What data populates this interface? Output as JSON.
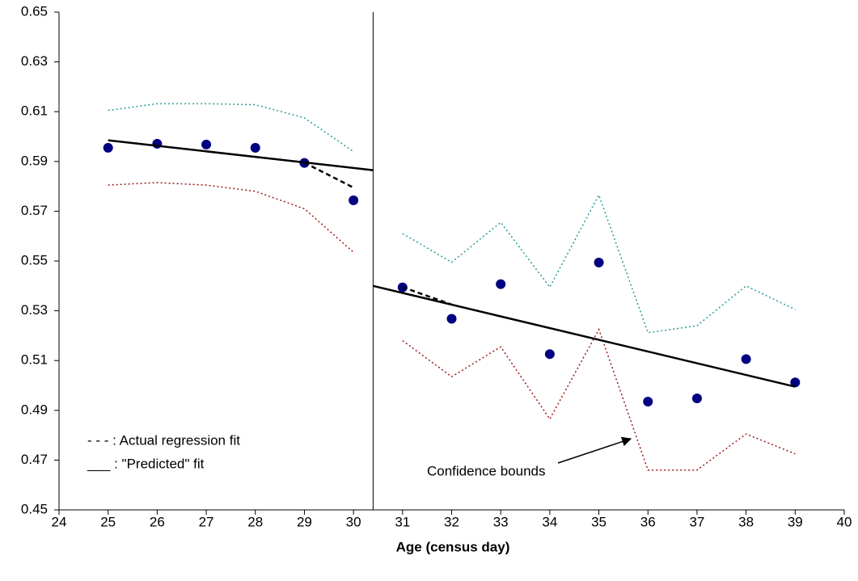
{
  "chart_data": {
    "type": "line",
    "x_label": "Age (census day)",
    "xlim": [
      24,
      40
    ],
    "xticks": [
      24,
      25,
      26,
      27,
      28,
      29,
      30,
      31,
      32,
      33,
      34,
      35,
      36,
      37,
      38,
      39,
      40
    ],
    "ylim": [
      0.45,
      0.65
    ],
    "yticks": [
      0.45,
      0.47,
      0.49,
      0.51,
      0.53,
      0.55,
      0.57,
      0.59,
      0.61,
      0.63,
      0.65
    ],
    "vline": 30.4,
    "series": [
      {
        "style": "dots",
        "color": "#000080",
        "x": [
          25,
          26,
          27,
          28,
          29,
          30,
          31,
          32,
          33,
          34,
          35,
          36,
          37,
          38,
          39
        ],
        "values": [
          0.5955,
          0.5971,
          0.5968,
          0.5955,
          0.5894,
          0.5744,
          0.5394,
          0.5268,
          0.5407,
          0.5126,
          0.5494,
          0.4935,
          0.4948,
          0.5106,
          0.5012
        ]
      },
      {
        "style": "dotted",
        "color": "#2a9a9a",
        "x": [
          25,
          26,
          27,
          28,
          29,
          30
        ],
        "values": [
          0.6105,
          0.6132,
          0.6132,
          0.6128,
          0.6075,
          0.594
        ]
      },
      {
        "style": "dotted",
        "color": "#2a9a9a",
        "x": [
          31,
          32,
          33,
          34,
          35,
          36,
          37,
          38,
          39
        ],
        "values": [
          0.561,
          0.5495,
          0.5655,
          0.5395,
          0.5765,
          0.5212,
          0.524,
          0.54,
          0.5305
        ]
      },
      {
        "style": "dotted",
        "color": "#a01818",
        "x": [
          25,
          26,
          27,
          28,
          29,
          30
        ],
        "values": [
          0.5805,
          0.5815,
          0.5805,
          0.578,
          0.571,
          0.5535
        ]
      },
      {
        "style": "dotted",
        "color": "#a01818",
        "x": [
          31,
          32,
          33,
          34,
          35,
          36,
          37,
          38,
          39
        ],
        "values": [
          0.518,
          0.5035,
          0.5155,
          0.4865,
          0.5225,
          0.466,
          0.466,
          0.4805,
          0.4725
        ]
      },
      {
        "style": "dashed",
        "color": "#000000",
        "x": [
          29,
          30
        ],
        "values": [
          0.5895,
          0.5795
        ]
      },
      {
        "style": "dashed",
        "color": "#000000",
        "x": [
          31,
          32
        ],
        "values": [
          0.5395,
          0.5325
        ]
      },
      {
        "style": "solid",
        "color": "#000000",
        "x": [
          25,
          30.4
        ],
        "values": [
          0.5985,
          0.5865
        ]
      },
      {
        "style": "solid",
        "color": "#000000",
        "x": [
          30.4,
          39
        ],
        "values": [
          0.54,
          0.4995
        ]
      }
    ],
    "legend_text": [
      "- - - : Actual regression fit",
      "___ : \"Predicted\" fit"
    ],
    "annotation": "Confidence bounds"
  }
}
